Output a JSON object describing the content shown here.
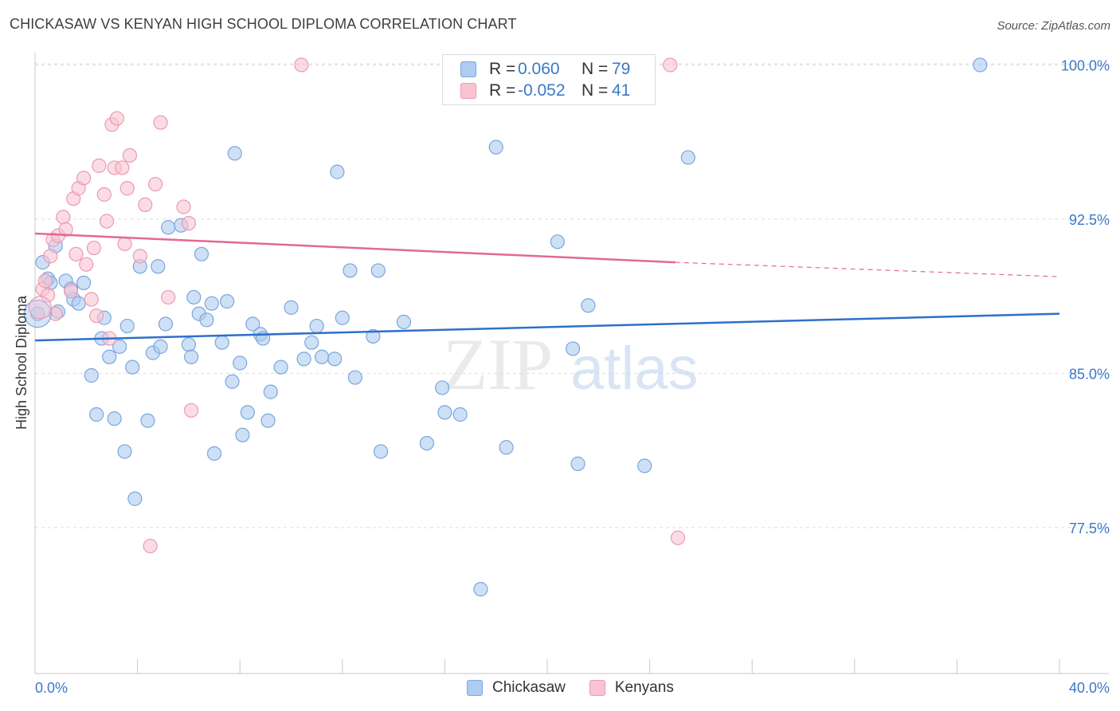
{
  "header": {
    "title": "CHICKASAW VS KENYAN HIGH SCHOOL DIPLOMA CORRELATION CHART",
    "source": "Source: ZipAtlas.com"
  },
  "legend": {
    "rows": [
      {
        "r_label": "R =",
        "r_value": "0.060",
        "n_label": "N =",
        "n_value": "79"
      },
      {
        "r_label": "R =",
        "r_value": "-0.052",
        "n_label": "N =",
        "n_value": "41"
      }
    ]
  },
  "bottom_legend": [
    "Chickasaw",
    "Kenyans"
  ],
  "colors": {
    "blue_fill": "#aecbf0",
    "blue_stroke": "#7aa6dd",
    "blue_line": "#2f6fcb",
    "pink_fill": "#f8c4d2",
    "pink_stroke": "#ec99b2",
    "pink_line": "#e36893",
    "tick_text": "#3a78c9",
    "grid": "#dddddd"
  },
  "chart_data": {
    "type": "scatter",
    "title": "CHICKASAW VS KENYAN HIGH SCHOOL DIPLOMA CORRELATION CHART",
    "xlabel": "",
    "ylabel": "High School Diploma",
    "xlim": [
      0,
      40
    ],
    "ylim": [
      70.4,
      100.6
    ],
    "x_tick_labels": [
      "0.0%",
      "40.0%"
    ],
    "y_ticks": [
      {
        "value": 77.5,
        "label": "77.5%"
      },
      {
        "value": 85.0,
        "label": "85.0%"
      },
      {
        "value": 92.5,
        "label": "92.5%"
      },
      {
        "value": 100.0,
        "label": "100.0%"
      }
    ],
    "watermark": {
      "zip": "ZIP",
      "atlas": "atlas"
    },
    "series": [
      {
        "name": "Chickasaw",
        "r": 0.06,
        "n": 79,
        "trend": {
          "x0": 0,
          "y0": 86.6,
          "x1": 40,
          "y1": 87.9
        },
        "points": [
          [
            0.1,
            87.9
          ],
          [
            0.3,
            90.4
          ],
          [
            0.5,
            89.6
          ],
          [
            0.6,
            89.4
          ],
          [
            0.8,
            91.2
          ],
          [
            0.9,
            88.0
          ],
          [
            1.2,
            89.5
          ],
          [
            1.4,
            89.1
          ],
          [
            1.5,
            88.6
          ],
          [
            1.7,
            88.4
          ],
          [
            1.9,
            89.4
          ],
          [
            2.2,
            84.9
          ],
          [
            2.4,
            83.0
          ],
          [
            2.6,
            86.7
          ],
          [
            2.7,
            87.7
          ],
          [
            2.9,
            85.8
          ],
          [
            3.1,
            82.8
          ],
          [
            3.3,
            86.3
          ],
          [
            3.5,
            81.2
          ],
          [
            3.6,
            87.3
          ],
          [
            3.8,
            85.3
          ],
          [
            3.9,
            78.9
          ],
          [
            4.1,
            90.2
          ],
          [
            4.4,
            82.7
          ],
          [
            4.6,
            86.0
          ],
          [
            4.8,
            90.2
          ],
          [
            4.9,
            86.3
          ],
          [
            5.1,
            87.4
          ],
          [
            5.2,
            92.1
          ],
          [
            5.7,
            92.2
          ],
          [
            6.0,
            86.4
          ],
          [
            6.1,
            85.8
          ],
          [
            6.2,
            88.7
          ],
          [
            6.4,
            87.9
          ],
          [
            6.5,
            90.8
          ],
          [
            6.7,
            87.6
          ],
          [
            6.9,
            88.4
          ],
          [
            7.0,
            81.1
          ],
          [
            7.3,
            86.5
          ],
          [
            7.5,
            88.5
          ],
          [
            7.7,
            84.6
          ],
          [
            7.8,
            95.7
          ],
          [
            8.0,
            85.5
          ],
          [
            8.1,
            82.0
          ],
          [
            8.3,
            83.1
          ],
          [
            8.5,
            87.4
          ],
          [
            8.8,
            86.9
          ],
          [
            8.9,
            86.7
          ],
          [
            9.1,
            82.7
          ],
          [
            9.2,
            84.1
          ],
          [
            9.6,
            85.3
          ],
          [
            10.0,
            88.2
          ],
          [
            10.5,
            85.7
          ],
          [
            10.8,
            86.5
          ],
          [
            11.0,
            87.3
          ],
          [
            11.2,
            85.8
          ],
          [
            11.7,
            85.7
          ],
          [
            11.8,
            94.8
          ],
          [
            12.0,
            87.7
          ],
          [
            12.3,
            90.0
          ],
          [
            12.5,
            84.8
          ],
          [
            13.2,
            86.8
          ],
          [
            13.4,
            90.0
          ],
          [
            13.5,
            81.2
          ],
          [
            14.4,
            87.5
          ],
          [
            15.3,
            81.6
          ],
          [
            15.9,
            84.3
          ],
          [
            16.0,
            83.1
          ],
          [
            16.6,
            83.0
          ],
          [
            18.0,
            96.0
          ],
          [
            18.4,
            81.4
          ],
          [
            20.4,
            91.4
          ],
          [
            21.0,
            86.2
          ],
          [
            21.2,
            80.6
          ],
          [
            21.6,
            88.3
          ],
          [
            23.8,
            80.5
          ],
          [
            25.5,
            95.5
          ],
          [
            36.9,
            100.0
          ],
          [
            17.4,
            74.5
          ]
        ]
      },
      {
        "name": "Kenyans",
        "r": -0.052,
        "n": 41,
        "trend": {
          "x0": 0,
          "y0": 91.8,
          "x1": 25,
          "y1": 90.4,
          "dash_x1": 40,
          "dash_y1": 89.7
        },
        "points": [
          [
            0.3,
            89.1
          ],
          [
            0.4,
            89.5
          ],
          [
            0.5,
            88.8
          ],
          [
            0.6,
            90.7
          ],
          [
            0.7,
            91.5
          ],
          [
            0.8,
            87.9
          ],
          [
            0.9,
            91.7
          ],
          [
            1.1,
            92.6
          ],
          [
            1.2,
            92.0
          ],
          [
            1.4,
            89.0
          ],
          [
            1.5,
            93.5
          ],
          [
            1.6,
            90.8
          ],
          [
            1.7,
            94.0
          ],
          [
            1.9,
            94.5
          ],
          [
            2.0,
            90.3
          ],
          [
            2.2,
            88.6
          ],
          [
            2.3,
            91.1
          ],
          [
            2.4,
            87.8
          ],
          [
            2.5,
            95.1
          ],
          [
            2.7,
            93.7
          ],
          [
            2.8,
            92.4
          ],
          [
            2.9,
            86.7
          ],
          [
            3.0,
            97.1
          ],
          [
            3.1,
            95.0
          ],
          [
            3.2,
            97.4
          ],
          [
            3.4,
            95.0
          ],
          [
            3.5,
            91.3
          ],
          [
            3.6,
            94.0
          ],
          [
            3.7,
            95.6
          ],
          [
            4.1,
            90.7
          ],
          [
            4.3,
            93.2
          ],
          [
            4.5,
            76.6
          ],
          [
            4.7,
            94.2
          ],
          [
            4.9,
            97.2
          ],
          [
            5.2,
            88.7
          ],
          [
            5.8,
            93.1
          ],
          [
            6.0,
            92.3
          ],
          [
            6.1,
            83.2
          ],
          [
            10.4,
            100.0
          ],
          [
            24.8,
            100.0
          ],
          [
            25.1,
            77.0
          ]
        ]
      }
    ]
  }
}
